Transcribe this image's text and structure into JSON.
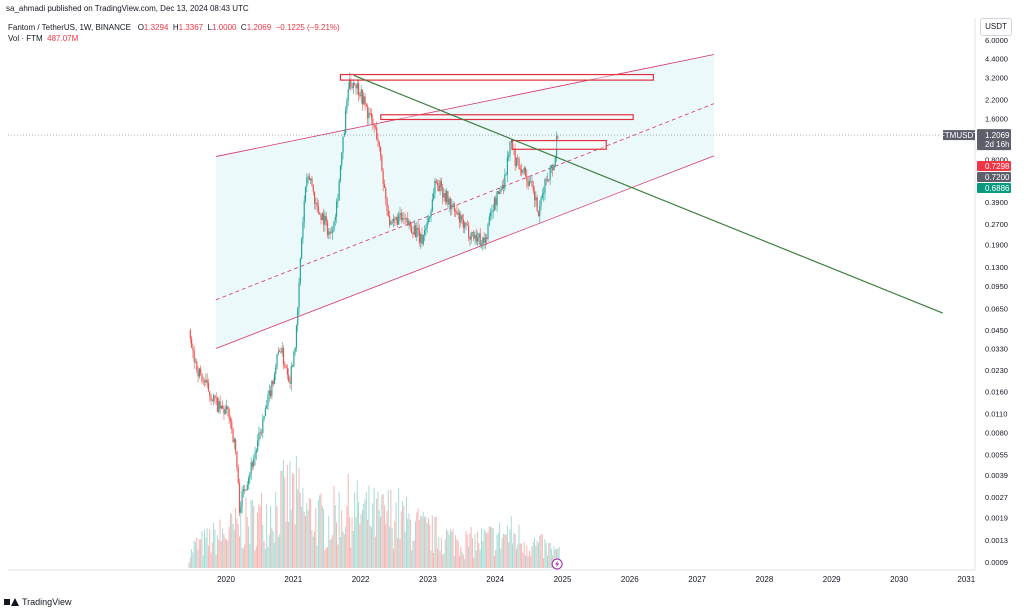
{
  "header": {
    "published": "sa_ahmadi published on TradingView.com, Dec 13, 2024 08:43 UTC"
  },
  "legend": {
    "symbol": "Fantom / TetherUS, 1W, BINANCE",
    "open_label": "O",
    "open": "1.3294",
    "high_label": "H",
    "high": "1.3367",
    "low_label": "L",
    "low": "1.0000",
    "close_label": "C",
    "close": "1.2069",
    "change": "−0.1225 (−9.21%)",
    "vol_label": "Vol · FTM",
    "vol_value": "487.07M"
  },
  "currency_button": "USDT",
  "footer": {
    "brand": "TradingView"
  },
  "colors": {
    "up": "#26a69a",
    "down": "#ef5350",
    "vol_up": "#a8dbd5",
    "vol_down": "#f7b5b3",
    "channel": "#d6336c",
    "channel_fill": "#e6f7fa",
    "trend": "#3a7d3a",
    "zone": "#e03040",
    "price_badge": "#5d606b",
    "red_badge": "#f23645",
    "green_badge": "#089981"
  },
  "chart_data": {
    "type": "candlestick",
    "y_scale": "log",
    "x_ticks": [
      "2020",
      "2021",
      "2022",
      "2023",
      "2024",
      "2025",
      "2026",
      "2027",
      "2028",
      "2029",
      "2030",
      "2031"
    ],
    "y_ticks": [
      "6.0000",
      "4.4000",
      "3.2000",
      "2.2000",
      "1.6000",
      "0.8000",
      "0.3900",
      "0.2700",
      "0.1900",
      "0.1300",
      "0.0950",
      "0.0650",
      "0.0450",
      "0.0330",
      "0.0230",
      "0.0160",
      "0.0110",
      "0.0080",
      "0.0055",
      "0.0039",
      "0.0027",
      "0.0019",
      "0.0013",
      "0.0009"
    ],
    "last_price": {
      "symbol": "FTMUSDT",
      "value": "1.2069",
      "countdown": "2d 16h"
    },
    "price_labels": [
      {
        "value": "0.7298",
        "color": "red"
      },
      {
        "value": "0.7200",
        "color": "gray"
      },
      {
        "value": "0.6886",
        "color": "green"
      }
    ],
    "price_path": [
      [
        2019.45,
        0.045
      ],
      [
        2019.5,
        0.03
      ],
      [
        2019.6,
        0.022
      ],
      [
        2019.75,
        0.016
      ],
      [
        2019.9,
        0.012
      ],
      [
        2020.05,
        0.011
      ],
      [
        2020.15,
        0.0055
      ],
      [
        2020.2,
        0.0023
      ],
      [
        2020.3,
        0.0035
      ],
      [
        2020.45,
        0.006
      ],
      [
        2020.6,
        0.012
      ],
      [
        2020.7,
        0.02
      ],
      [
        2020.8,
        0.035
      ],
      [
        2020.85,
        0.028
      ],
      [
        2020.95,
        0.02
      ],
      [
        2021.05,
        0.045
      ],
      [
        2021.12,
        0.2
      ],
      [
        2021.18,
        0.5
      ],
      [
        2021.25,
        0.6
      ],
      [
        2021.35,
        0.35
      ],
      [
        2021.45,
        0.3
      ],
      [
        2021.55,
        0.22
      ],
      [
        2021.65,
        0.4
      ],
      [
        2021.75,
        1.2
      ],
      [
        2021.82,
        2.8
      ],
      [
        2021.9,
        3.0
      ],
      [
        2022.0,
        2.5
      ],
      [
        2022.1,
        1.8
      ],
      [
        2022.25,
        1.2
      ],
      [
        2022.35,
        0.5
      ],
      [
        2022.45,
        0.25
      ],
      [
        2022.55,
        0.3
      ],
      [
        2022.65,
        0.28
      ],
      [
        2022.8,
        0.25
      ],
      [
        2022.9,
        0.2
      ],
      [
        2023.05,
        0.35
      ],
      [
        2023.1,
        0.55
      ],
      [
        2023.2,
        0.5
      ],
      [
        2023.3,
        0.4
      ],
      [
        2023.45,
        0.3
      ],
      [
        2023.55,
        0.25
      ],
      [
        2023.7,
        0.22
      ],
      [
        2023.85,
        0.2
      ],
      [
        2023.95,
        0.35
      ],
      [
        2024.05,
        0.45
      ],
      [
        2024.15,
        0.6
      ],
      [
        2024.22,
        1.1
      ],
      [
        2024.3,
        0.8
      ],
      [
        2024.4,
        0.7
      ],
      [
        2024.5,
        0.55
      ],
      [
        2024.6,
        0.4
      ],
      [
        2024.65,
        0.3
      ],
      [
        2024.72,
        0.5
      ],
      [
        2024.8,
        0.65
      ],
      [
        2024.88,
        0.75
      ],
      [
        2024.92,
        1.25
      ],
      [
        2024.95,
        1.2
      ]
    ],
    "volume_envelope": [
      [
        2019.5,
        0.2
      ],
      [
        2020.0,
        0.35
      ],
      [
        2020.5,
        0.5
      ],
      [
        2021.0,
        0.75
      ],
      [
        2021.2,
        0.55
      ],
      [
        2021.5,
        0.45
      ],
      [
        2021.75,
        0.6
      ],
      [
        2022.0,
        0.55
      ],
      [
        2022.3,
        0.5
      ],
      [
        2022.5,
        0.55
      ],
      [
        2022.7,
        0.45
      ],
      [
        2023.0,
        0.35
      ],
      [
        2023.3,
        0.3
      ],
      [
        2023.6,
        0.25
      ],
      [
        2024.0,
        0.3
      ],
      [
        2024.2,
        0.35
      ],
      [
        2024.5,
        0.25
      ],
      [
        2024.75,
        0.2
      ],
      [
        2024.95,
        0.15
      ]
    ],
    "channel": {
      "upper": [
        [
          2019.85,
          0.84
        ],
        [
          2027.25,
          4.7
        ]
      ],
      "mid": [
        [
          2019.85,
          0.075
        ],
        [
          2027.25,
          2.05
        ]
      ],
      "lower": [
        [
          2019.85,
          0.033
        ],
        [
          2027.25,
          0.85
        ]
      ]
    },
    "trendline": [
      [
        2021.9,
        3.3
      ],
      [
        2030.65,
        0.06
      ]
    ],
    "zones": [
      {
        "x1": 2021.7,
        "x2": 2026.35,
        "y_top": 3.35,
        "y_bot": 3.05
      },
      {
        "x1": 2022.3,
        "x2": 2026.05,
        "y_top": 1.7,
        "y_bot": 1.57
      },
      {
        "x1": 2024.25,
        "x2": 2025.65,
        "y_top": 1.1,
        "y_bot": 0.95
      }
    ]
  }
}
